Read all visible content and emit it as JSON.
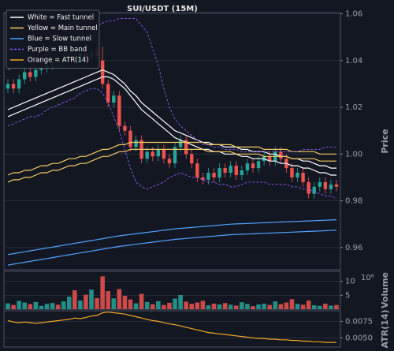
{
  "chart_data": [
    {
      "type": "candlestick",
      "title": "SUI/USDT (15M)",
      "ylabel": "Price",
      "ylim": [
        0.9505,
        1.0605
      ],
      "yticks": [
        0.96,
        0.98,
        {
          "value": 1,
          "label": "1.00"
        },
        1.02,
        1.04,
        1.06
      ],
      "grid": true,
      "legend": "upper left",
      "up_color": "#26a69a",
      "down_color": "#ef5350",
      "open": [
        1.028,
        1.03,
        1.028,
        1.032,
        1.035,
        1.033,
        1.036,
        1.037,
        1.038,
        1.04,
        1.039,
        1.041,
        1.042,
        1.04,
        1.043,
        1.041,
        1.044,
        1.04,
        1.03,
        1.022,
        1.025,
        1.012,
        1.01,
        1.003,
        1.006,
        0.998,
        1.001,
        0.999,
        1.002,
        0.998,
        0.996,
        1.003,
        1.006,
        1.0,
        0.996,
        0.99,
        0.989,
        0.992,
        0.99,
        0.994,
        0.992,
        0.995,
        0.991,
        0.993,
        0.996,
        0.994,
        0.997,
        0.999,
        0.997,
        1.001,
        0.998,
        0.994,
        0.99,
        0.992,
        0.988,
        0.983,
        0.986,
        0.988,
        0.985,
        0.987
      ],
      "high": [
        1.032,
        1.032,
        1.034,
        1.037,
        1.037,
        1.038,
        1.039,
        1.04,
        1.042,
        1.042,
        1.043,
        1.044,
        1.044,
        1.045,
        1.045,
        1.046,
        1.046,
        1.046,
        1.032,
        1.027,
        1.027,
        1.014,
        1.012,
        1.008,
        1.008,
        1.003,
        1.003,
        1.004,
        1.004,
        1.0,
        1.005,
        1.008,
        1.008,
        1.002,
        0.998,
        0.992,
        0.994,
        0.994,
        0.996,
        0.996,
        0.997,
        0.997,
        0.995,
        0.998,
        0.998,
        0.999,
        1.001,
        1.001,
        1.003,
        1.003,
        1.0,
        0.996,
        0.994,
        0.994,
        0.99,
        0.988,
        0.99,
        0.99,
        0.989,
        0.989
      ],
      "low": [
        1.026,
        1.026,
        1.026,
        1.03,
        1.031,
        1.031,
        1.034,
        1.035,
        1.036,
        1.037,
        1.037,
        1.039,
        1.038,
        1.038,
        1.039,
        1.039,
        1.04,
        1.028,
        1.02,
        1.02,
        1.01,
        1.008,
        1.001,
        1.001,
        0.996,
        0.996,
        0.997,
        0.997,
        0.996,
        0.994,
        0.994,
        1.001,
        0.998,
        0.994,
        0.988,
        0.987,
        0.987,
        0.988,
        0.988,
        0.99,
        0.99,
        0.989,
        0.989,
        0.991,
        0.992,
        0.992,
        0.995,
        0.995,
        0.995,
        0.996,
        0.992,
        0.988,
        0.988,
        0.986,
        0.981,
        0.981,
        0.984,
        0.983,
        0.983,
        0.984
      ],
      "close": [
        1.03,
        1.028,
        1.032,
        1.035,
        1.033,
        1.036,
        1.037,
        1.038,
        1.04,
        1.039,
        1.041,
        1.042,
        1.04,
        1.043,
        1.041,
        1.044,
        1.042,
        1.03,
        1.022,
        1.025,
        1.012,
        1.01,
        1.003,
        1.006,
        0.998,
        1.001,
        0.999,
        1.002,
        0.998,
        0.996,
        1.003,
        1.006,
        1.0,
        0.996,
        0.99,
        0.989,
        0.992,
        0.99,
        0.994,
        0.992,
        0.995,
        0.991,
        0.993,
        0.996,
        0.994,
        0.997,
        0.999,
        0.997,
        1.001,
        0.998,
        0.994,
        0.99,
        0.992,
        0.988,
        0.983,
        0.986,
        0.988,
        0.985,
        0.987,
        0.986
      ],
      "series": [
        {
          "name": "White = Fast tunnel",
          "color": "#ffffff",
          "values": [
            1.019,
            1.02,
            1.021,
            1.022,
            1.023,
            1.024,
            1.025,
            1.026,
            1.027,
            1.028,
            1.029,
            1.03,
            1.031,
            1.032,
            1.033,
            1.034,
            1.035,
            1.036,
            1.035,
            1.034,
            1.032,
            1.03,
            1.027,
            1.025,
            1.022,
            1.02,
            1.018,
            1.016,
            1.014,
            1.012,
            1.01,
            1.009,
            1.008,
            1.007,
            1.006,
            1.005,
            1.005,
            1.004,
            1.004,
            1.003,
            1.003,
            1.003,
            1.002,
            1.002,
            1.001,
            1.001,
            1.001,
            1.0,
            1.0,
            0.999,
            0.999,
            0.998,
            0.998,
            0.997,
            0.997,
            0.996,
            0.995,
            0.995,
            0.994,
            0.994
          ]
        },
        {
          "color": "#ffffff",
          "values": [
            1.016,
            1.017,
            1.018,
            1.019,
            1.02,
            1.021,
            1.022,
            1.023,
            1.024,
            1.025,
            1.026,
            1.027,
            1.028,
            1.029,
            1.03,
            1.031,
            1.032,
            1.033,
            1.033,
            1.032,
            1.03,
            1.028,
            1.025,
            1.022,
            1.019,
            1.017,
            1.015,
            1.013,
            1.011,
            1.009,
            1.007,
            1.006,
            1.005,
            1.004,
            1.003,
            1.002,
            1.002,
            1.001,
            1.001,
            1.0,
            1.0,
            1.0,
            0.999,
            0.999,
            0.998,
            0.998,
            0.998,
            0.997,
            0.997,
            0.996,
            0.996,
            0.995,
            0.995,
            0.994,
            0.994,
            0.993,
            0.992,
            0.992,
            0.991,
            0.991
          ]
        },
        {
          "name": "Yellow = Main tunnel",
          "color": "#f6c85f",
          "values": [
            0.991,
            0.992,
            0.992,
            0.993,
            0.993,
            0.994,
            0.995,
            0.995,
            0.996,
            0.996,
            0.997,
            0.998,
            0.998,
            0.999,
            0.999,
            1.0,
            1.001,
            1.002,
            1.002,
            1.003,
            1.004,
            1.004,
            1.005,
            1.005,
            1.005,
            1.005,
            1.005,
            1.005,
            1.005,
            1.005,
            1.005,
            1.005,
            1.005,
            1.005,
            1.005,
            1.005,
            1.004,
            1.004,
            1.004,
            1.004,
            1.004,
            1.003,
            1.003,
            1.003,
            1.003,
            1.003,
            1.002,
            1.002,
            1.002,
            1.002,
            1.002,
            1.001,
            1.001,
            1.001,
            1.001,
            1.001,
            1.0,
            1.0,
            1.0,
            1.0
          ]
        },
        {
          "color": "#f6c85f",
          "values": [
            0.988,
            0.989,
            0.989,
            0.99,
            0.99,
            0.991,
            0.992,
            0.992,
            0.993,
            0.993,
            0.994,
            0.995,
            0.995,
            0.996,
            0.996,
            0.997,
            0.998,
            0.999,
            0.999,
            1.0,
            1.001,
            1.001,
            1.002,
            1.002,
            1.002,
            1.002,
            1.002,
            1.002,
            1.002,
            1.002,
            1.002,
            1.002,
            1.002,
            1.002,
            1.002,
            1.002,
            1.001,
            1.001,
            1.001,
            1.001,
            1.001,
            1.0,
            1.0,
            1.0,
            1.0,
            1.0,
            0.999,
            0.999,
            0.999,
            0.999,
            0.999,
            0.998,
            0.998,
            0.998,
            0.998,
            0.998,
            0.997,
            0.997,
            0.997,
            0.997
          ]
        },
        {
          "name": "Blue = Slow tunnel",
          "color": "#4da3ff",
          "values": [
            0.957,
            0.9574,
            0.9578,
            0.9582,
            0.9586,
            0.959,
            0.9594,
            0.9598,
            0.9602,
            0.9606,
            0.961,
            0.9614,
            0.9618,
            0.9622,
            0.9626,
            0.963,
            0.9634,
            0.9638,
            0.9642,
            0.9646,
            0.965,
            0.9653,
            0.9656,
            0.9659,
            0.9662,
            0.9665,
            0.9668,
            0.9671,
            0.9674,
            0.9677,
            0.968,
            0.9682,
            0.9684,
            0.9686,
            0.9688,
            0.969,
            0.9692,
            0.9694,
            0.9696,
            0.9698,
            0.97,
            0.9701,
            0.9702,
            0.9703,
            0.9704,
            0.9705,
            0.9706,
            0.9707,
            0.9708,
            0.9709,
            0.971,
            0.9711,
            0.9712,
            0.9713,
            0.9714,
            0.9715,
            0.9716,
            0.9717,
            0.9718,
            0.9719
          ]
        },
        {
          "color": "#4da3ff",
          "values": [
            0.9525,
            0.9529,
            0.9533,
            0.9537,
            0.9541,
            0.9545,
            0.9549,
            0.9553,
            0.9557,
            0.9561,
            0.9565,
            0.9569,
            0.9573,
            0.9577,
            0.9581,
            0.9585,
            0.9589,
            0.9593,
            0.9597,
            0.9601,
            0.9605,
            0.9608,
            0.9611,
            0.9614,
            0.9617,
            0.962,
            0.9623,
            0.9626,
            0.9629,
            0.9632,
            0.9635,
            0.9637,
            0.9639,
            0.9641,
            0.9643,
            0.9645,
            0.9647,
            0.9649,
            0.9651,
            0.9653,
            0.9655,
            0.9656,
            0.9657,
            0.9658,
            0.9659,
            0.966,
            0.9661,
            0.9662,
            0.9663,
            0.9664,
            0.9665,
            0.9666,
            0.9667,
            0.9668,
            0.9669,
            0.967,
            0.9671,
            0.9672,
            0.9673,
            0.9674
          ]
        },
        {
          "name": "Purple = BB band",
          "color": "#8b5cf6",
          "dash": true,
          "values": [
            1.036,
            1.037,
            1.038,
            1.039,
            1.04,
            1.04,
            1.041,
            1.043,
            1.044,
            1.046,
            1.047,
            1.048,
            1.05,
            1.051,
            1.053,
            1.054,
            1.055,
            1.056,
            1.057,
            1.057,
            1.058,
            1.058,
            1.058,
            1.058,
            1.055,
            1.052,
            1.045,
            1.038,
            1.028,
            1.02,
            1.015,
            1.012,
            1.01,
            1.008,
            1.006,
            1.004,
            1.004,
            1.003,
            1.003,
            1.002,
            1.002,
            1.002,
            1.001,
            1.001,
            1.001,
            1.001,
            1.001,
            1.001,
            1.001,
            1.001,
            1.001,
            1.001,
            1.001,
            1.002,
            1.002,
            1.002,
            1.002,
            1.003,
            1.003,
            1.003
          ]
        },
        {
          "color": "#8b5cf6",
          "dash": true,
          "values": [
            1.012,
            1.013,
            1.014,
            1.015,
            1.016,
            1.016,
            1.017,
            1.019,
            1.02,
            1.021,
            1.022,
            1.023,
            1.024,
            1.026,
            1.027,
            1.028,
            1.028,
            1.026,
            1.022,
            1.016,
            1.01,
            1.002,
            0.994,
            0.988,
            0.986,
            0.985,
            0.986,
            0.987,
            0.988,
            0.99,
            0.991,
            0.992,
            0.991,
            0.99,
            0.99,
            0.989,
            0.988,
            0.988,
            0.987,
            0.987,
            0.986,
            0.986,
            0.987,
            0.988,
            0.988,
            0.988,
            0.988,
            0.987,
            0.987,
            0.987,
            0.987,
            0.986,
            0.986,
            0.985,
            0.985,
            0.984,
            0.983,
            0.982,
            0.982,
            0.981
          ]
        }
      ]
    },
    {
      "type": "bar",
      "ylabel": "Volume",
      "offset_text": "10⁶",
      "ylim": [
        0,
        13.6
      ],
      "yticks": [
        5,
        10
      ],
      "grid": true,
      "values": [
        2.1,
        1.5,
        3.0,
        2.4,
        1.8,
        2.6,
        1.2,
        1.9,
        2.2,
        1.6,
        2.8,
        4.5,
        6.8,
        3.1,
        5.2,
        7.0,
        4.0,
        11.8,
        6.5,
        3.9,
        7.2,
        4.8,
        3.5,
        2.1,
        5.5,
        2.6,
        1.8,
        2.9,
        1.5,
        2.3,
        3.8,
        5.1,
        2.7,
        1.9,
        2.4,
        3.0,
        1.4,
        2.0,
        1.7,
        2.2,
        1.6,
        1.3,
        2.5,
        1.9,
        1.1,
        1.7,
        2.0,
        1.5,
        2.8,
        1.8,
        2.4,
        3.6,
        1.9,
        1.6,
        3.1,
        1.4,
        1.2,
        2.0,
        1.3,
        1.5
      ]
    },
    {
      "type": "line",
      "ylabel": "ATR(14)",
      "ylim": [
        0.0036,
        0.0091
      ],
      "yticks": [
        {
          "value": 0.005,
          "label": "0.0050"
        },
        0.0075
      ],
      "grid": true,
      "series": [
        {
          "name": "Orange = ATR(14)",
          "color": "#f5a623",
          "values": [
            0.0076,
            0.0074,
            0.0073,
            0.0074,
            0.0073,
            0.0072,
            0.0073,
            0.0074,
            0.0075,
            0.0076,
            0.0077,
            0.0078,
            0.008,
            0.0079,
            0.0081,
            0.0083,
            0.0084,
            0.0088,
            0.0089,
            0.0088,
            0.0087,
            0.0086,
            0.0084,
            0.0082,
            0.008,
            0.0078,
            0.0076,
            0.0075,
            0.0073,
            0.0071,
            0.007,
            0.0068,
            0.0066,
            0.0064,
            0.0062,
            0.006,
            0.0058,
            0.0057,
            0.0056,
            0.0055,
            0.0054,
            0.0053,
            0.0052,
            0.0051,
            0.005,
            0.0049,
            0.0049,
            0.0048,
            0.0048,
            0.0047,
            0.0047,
            0.0046,
            0.0046,
            0.0045,
            0.0045,
            0.0044,
            0.0044,
            0.0043,
            0.0043,
            0.0043
          ]
        }
      ]
    }
  ]
}
